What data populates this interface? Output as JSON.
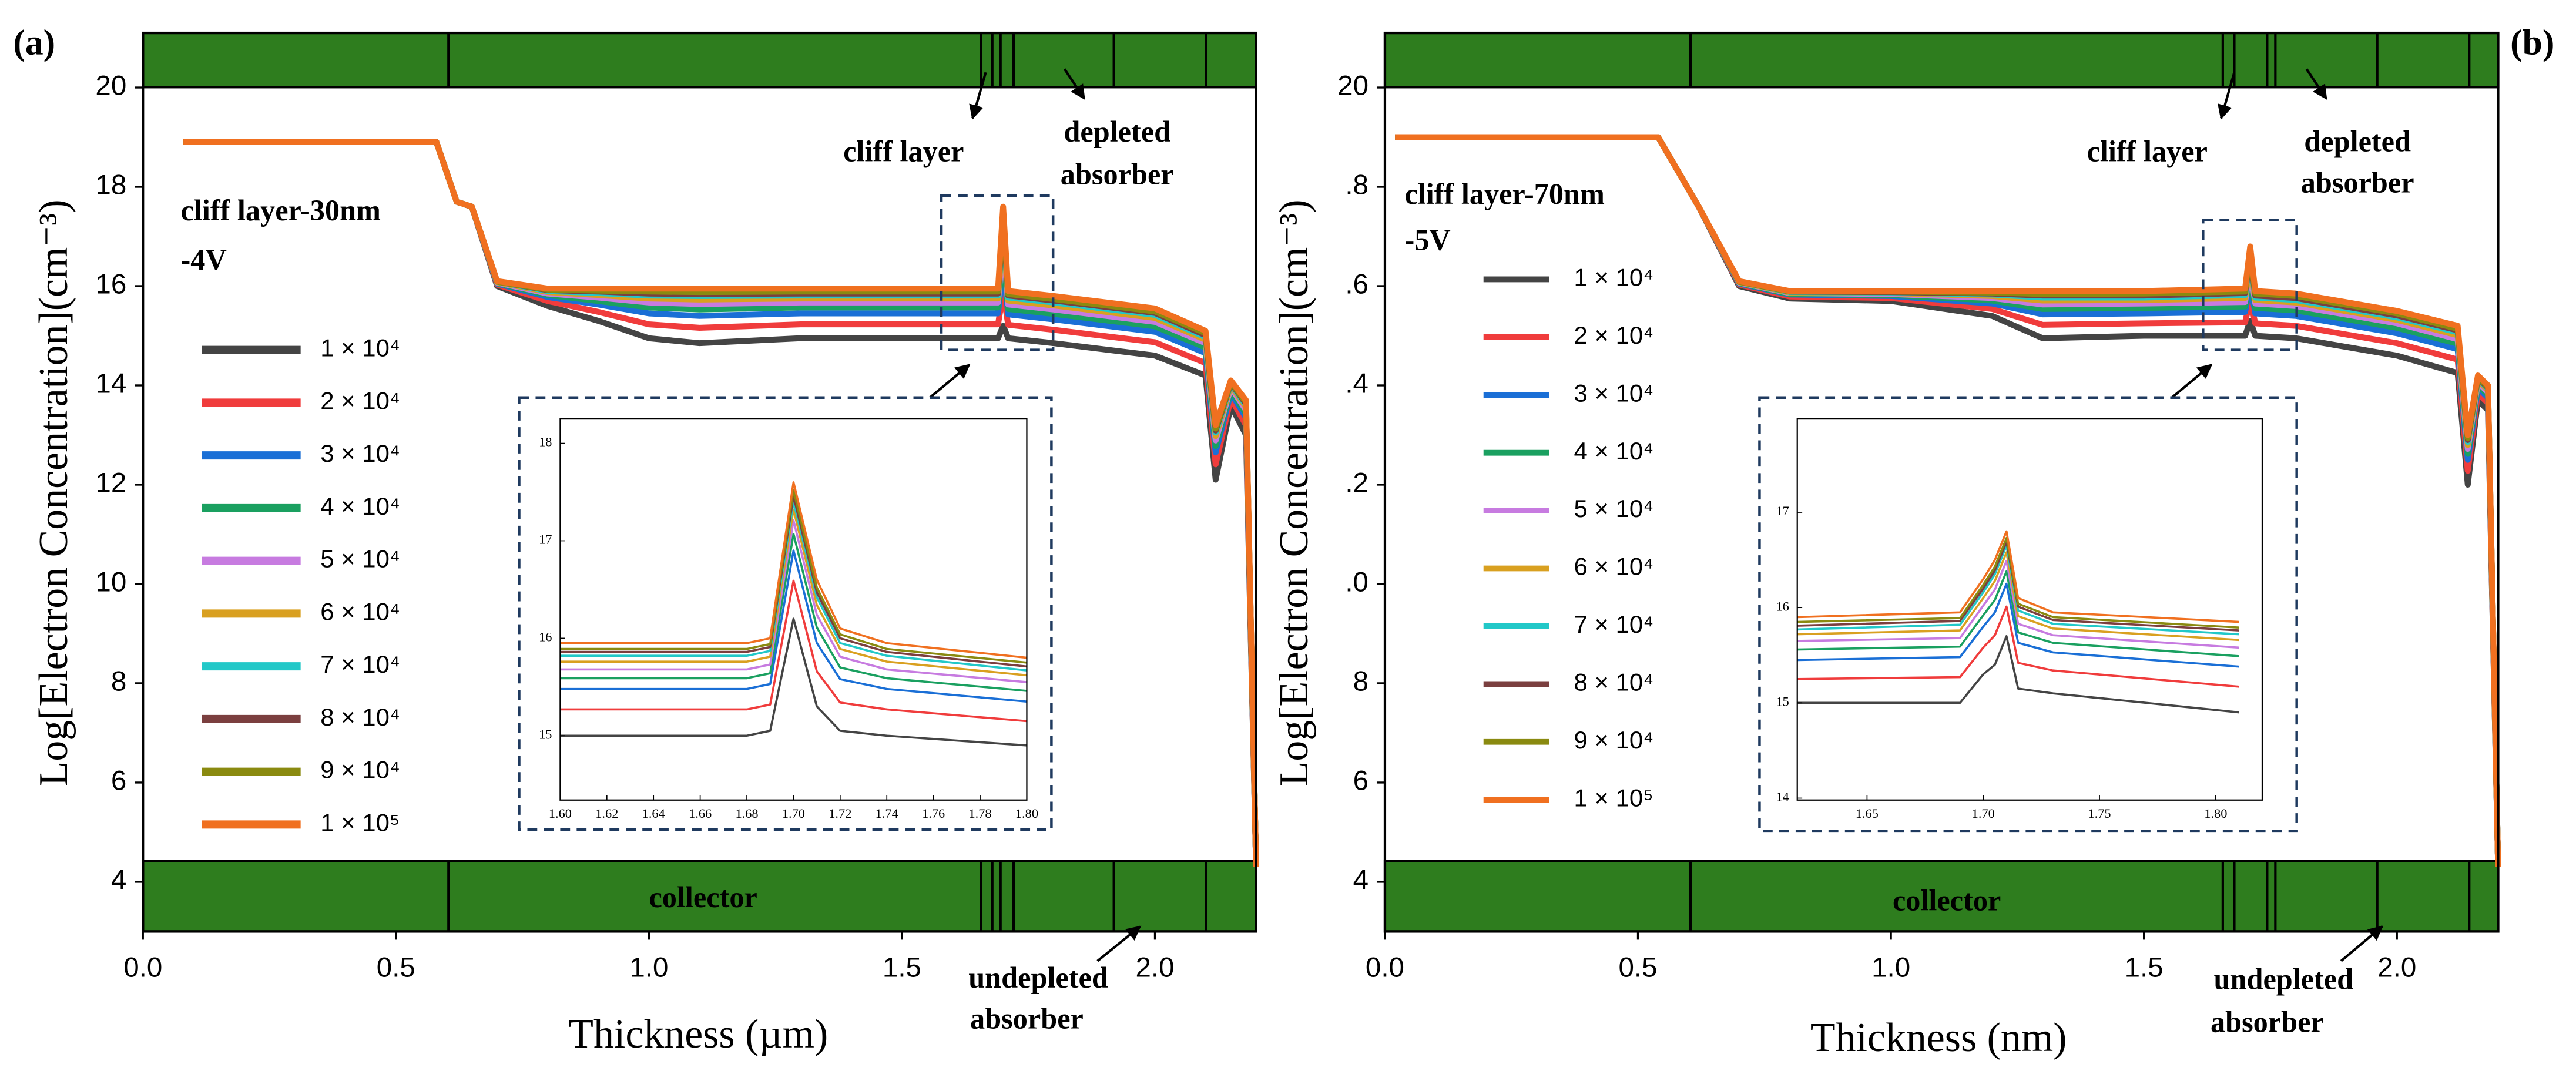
{
  "chart_data": [
    {
      "type": "line",
      "panel_label": "(a)",
      "x_label": "Thickness (µm)",
      "y_label": "Log[Electron Concentration](cm⁻³)",
      "annotations": [
        "cliff layer-30nm",
        "-4V",
        "cliff layer",
        "depleted",
        "absorber",
        "collector",
        "undepleted",
        "absorber"
      ],
      "xlim": [
        0,
        2.2
      ],
      "ylim": [
        3,
        21.1
      ],
      "xticks": [
        {
          "value": 0,
          "label": "0.0"
        },
        0.5,
        {
          "value": 1,
          "label": "1.0"
        },
        1.5,
        {
          "value": 2,
          "label": "2.0"
        }
      ],
      "yticks": [
        4,
        6,
        8,
        10,
        12,
        14,
        16,
        18,
        20
      ],
      "x": [
        0.08,
        0.58,
        0.62,
        0.65,
        0.7,
        0.8,
        0.9,
        1.0,
        1.1,
        1.3,
        1.69,
        1.7,
        1.71,
        1.8,
        2.0,
        2.1,
        2.12,
        2.15,
        2.18,
        2.2
      ],
      "series": [
        {
          "name": "1 × 10⁴",
          "color": "#444444",
          "values": [
            18.9,
            18.9,
            17.7,
            17.6,
            16.0,
            15.6,
            15.3,
            14.95,
            14.85,
            14.95,
            14.95,
            15.2,
            14.95,
            14.85,
            14.6,
            14.2,
            12.1,
            13.6,
            13.0,
            4.3
          ]
        },
        {
          "name": "2 × 10⁴",
          "color": "#f03c3c",
          "values": [
            18.9,
            18.9,
            17.7,
            17.6,
            16.03,
            15.7,
            15.48,
            15.23,
            15.16,
            15.23,
            15.23,
            15.87,
            15.22,
            15.12,
            14.87,
            14.45,
            12.41,
            13.74,
            13.2,
            4.3
          ]
        },
        {
          "name": "3 × 10⁴",
          "color": "#1a6fd6",
          "values": [
            18.9,
            18.9,
            17.7,
            17.6,
            16.05,
            15.78,
            15.63,
            15.45,
            15.4,
            15.45,
            15.45,
            16.4,
            15.43,
            15.33,
            15.08,
            14.65,
            12.65,
            13.85,
            13.35,
            4.3
          ]
        },
        {
          "name": "4 × 10⁴",
          "color": "#1aa060",
          "values": [
            18.9,
            18.9,
            17.7,
            17.6,
            16.06,
            15.82,
            15.7,
            15.57,
            15.53,
            15.57,
            15.57,
            16.69,
            15.54,
            15.44,
            15.19,
            14.76,
            12.78,
            13.91,
            13.43,
            4.3
          ]
        },
        {
          "name": "5 × 10⁴",
          "color": "#c77be0",
          "values": [
            18.9,
            18.9,
            17.7,
            17.6,
            16.07,
            15.85,
            15.77,
            15.67,
            15.64,
            15.67,
            15.67,
            16.93,
            15.63,
            15.53,
            15.28,
            14.85,
            12.89,
            13.96,
            13.5,
            4.3
          ]
        },
        {
          "name": "6 × 10⁴",
          "color": "#d9a020",
          "values": [
            18.9,
            18.9,
            17.7,
            17.6,
            16.08,
            15.88,
            15.82,
            15.75,
            15.73,
            15.75,
            15.75,
            17.12,
            15.71,
            15.61,
            15.36,
            14.92,
            12.98,
            14.0,
            13.56,
            4.3
          ]
        },
        {
          "name": "7 × 10⁴",
          "color": "#22c8c8",
          "values": [
            18.9,
            18.9,
            17.7,
            17.6,
            16.09,
            15.9,
            15.86,
            15.81,
            15.8,
            15.81,
            15.81,
            17.26,
            15.77,
            15.67,
            15.42,
            14.97,
            13.05,
            14.03,
            13.6,
            4.3
          ]
        },
        {
          "name": "8 × 10⁴",
          "color": "#7b3f3f",
          "values": [
            18.9,
            18.9,
            17.7,
            17.6,
            16.09,
            15.92,
            15.89,
            15.85,
            15.84,
            15.85,
            15.85,
            17.36,
            15.81,
            15.71,
            15.46,
            15.01,
            13.09,
            14.05,
            13.63,
            4.3
          ]
        },
        {
          "name": "9 × 10⁴",
          "color": "#8a8a10",
          "values": [
            18.9,
            18.9,
            17.7,
            17.6,
            16.09,
            15.93,
            15.91,
            15.89,
            15.88,
            15.89,
            15.89,
            17.46,
            15.84,
            15.74,
            15.49,
            15.05,
            13.13,
            14.07,
            13.66,
            4.3
          ]
        },
        {
          "name": "1 × 10⁵",
          "color": "#f07020",
          "values": [
            18.9,
            18.9,
            17.7,
            17.6,
            16.1,
            15.95,
            15.95,
            15.95,
            15.95,
            15.95,
            15.95,
            17.6,
            15.9,
            15.8,
            15.55,
            15.1,
            13.2,
            14.1,
            13.7,
            4.3
          ]
        }
      ]
    },
    {
      "type": "line",
      "xlim": [
        1.6,
        1.8
      ],
      "ylim": [
        14.34,
        18.25
      ],
      "xticks": [
        {
          "value": 1.6,
          "label": "1.60"
        },
        1.62,
        1.64,
        1.66,
        1.68,
        {
          "value": 1.7,
          "label": "1.70"
        },
        1.72,
        1.74,
        1.76,
        1.78,
        {
          "value": 1.8,
          "label": "1.80"
        }
      ],
      "yticks": [
        15,
        16,
        17,
        18
      ],
      "x": [
        1.6,
        1.68,
        1.69,
        1.7,
        1.71,
        1.72,
        1.74,
        1.8
      ],
      "series": [
        {
          "color": "#444444",
          "values": [
            15.0,
            15.0,
            15.05,
            16.2,
            15.3,
            15.05,
            15.0,
            14.9
          ]
        },
        {
          "color": "#f03c3c",
          "values": [
            15.27,
            15.27,
            15.32,
            16.59,
            15.66,
            15.34,
            15.27,
            15.15
          ]
        },
        {
          "color": "#1a6fd6",
          "values": [
            15.48,
            15.48,
            15.53,
            16.9,
            15.95,
            15.58,
            15.48,
            15.35
          ]
        },
        {
          "color": "#1aa060",
          "values": [
            15.59,
            15.59,
            15.64,
            17.07,
            16.11,
            15.7,
            15.59,
            15.46
          ]
        },
        {
          "color": "#c77be0",
          "values": [
            15.68,
            15.68,
            15.73,
            17.21,
            16.24,
            15.81,
            15.68,
            15.55
          ]
        },
        {
          "color": "#d9a020",
          "values": [
            15.76,
            15.76,
            15.81,
            17.32,
            16.34,
            15.89,
            15.76,
            15.62
          ]
        },
        {
          "color": "#22c8c8",
          "values": [
            15.82,
            15.82,
            15.87,
            17.4,
            16.42,
            15.95,
            15.82,
            15.67
          ]
        },
        {
          "color": "#7b3f3f",
          "values": [
            15.86,
            15.86,
            15.91,
            17.46,
            16.47,
            16.0,
            15.86,
            15.71
          ]
        },
        {
          "color": "#8a8a10",
          "values": [
            15.89,
            15.89,
            15.94,
            17.52,
            16.52,
            16.04,
            15.89,
            15.75
          ]
        },
        {
          "color": "#f07020",
          "values": [
            15.95,
            15.95,
            16.0,
            17.6,
            16.6,
            16.1,
            15.95,
            15.8
          ]
        }
      ]
    },
    {
      "type": "line",
      "panel_label": "(b)",
      "x_label": "Thickness (nm)",
      "y_label": "Log[Electron Concentration](cm⁻³)",
      "annotations": [
        "cliff layer-70nm",
        "-5V",
        "cliff layer",
        "depleted",
        "absorber",
        "collector",
        "undepleted",
        "absorber"
      ],
      "xlim": [
        0,
        2.2
      ],
      "ylim": [
        3,
        21.1
      ],
      "xticks": [
        {
          "value": 0,
          "label": "0.0"
        },
        0.5,
        {
          "value": 1,
          "label": "1.0"
        },
        1.5,
        {
          "value": 2,
          "label": "2.0"
        }
      ],
      "yticks": [
        4,
        6,
        8,
        {
          "value": 10,
          "label": ".0"
        },
        {
          "value": 12,
          "label": ".2"
        },
        {
          "value": 14,
          "label": ".4"
        },
        {
          "value": 16,
          "label": ".6"
        },
        {
          "value": 18,
          "label": ".8"
        },
        20
      ],
      "x": [
        0.02,
        0.54,
        0.58,
        0.62,
        0.7,
        0.8,
        1.0,
        1.2,
        1.3,
        1.5,
        1.7,
        1.71,
        1.72,
        1.8,
        2.0,
        2.12,
        2.14,
        2.16,
        2.18,
        2.2
      ],
      "series": [
        {
          "name": "1 × 10⁴",
          "color": "#444444",
          "values": [
            19.0,
            19.0,
            18.3,
            17.6,
            16.0,
            15.75,
            15.7,
            15.4,
            14.95,
            15.0,
            15.0,
            15.3,
            15.0,
            14.95,
            14.6,
            14.25,
            12.0,
            13.7,
            13.5,
            4.3
          ]
        },
        {
          "name": "2 × 10⁴",
          "color": "#f03c3c",
          "values": [
            19.0,
            19.0,
            18.3,
            17.6,
            16.03,
            15.79,
            15.76,
            15.54,
            15.22,
            15.25,
            15.27,
            15.72,
            15.25,
            15.2,
            14.85,
            14.52,
            12.28,
            13.84,
            13.64,
            4.3
          ]
        },
        {
          "name": "3 × 10⁴",
          "color": "#1a6fd6",
          "values": [
            19.0,
            19.0,
            18.3,
            17.6,
            16.05,
            15.83,
            15.8,
            15.65,
            15.43,
            15.45,
            15.48,
            16.05,
            15.45,
            15.4,
            15.05,
            14.73,
            12.5,
            13.95,
            13.75,
            4.3
          ]
        },
        {
          "name": "4 × 10⁴",
          "color": "#1aa060",
          "values": [
            19.0,
            19.0,
            18.3,
            17.6,
            16.06,
            15.84,
            15.82,
            15.71,
            15.54,
            15.56,
            15.59,
            16.23,
            15.56,
            15.51,
            15.16,
            14.84,
            12.62,
            14.01,
            13.81,
            4.3
          ]
        },
        {
          "name": "5 × 10⁴",
          "color": "#c77be0",
          "values": [
            19.0,
            19.0,
            18.3,
            17.6,
            16.07,
            15.86,
            15.84,
            15.76,
            15.63,
            15.65,
            15.68,
            16.38,
            15.65,
            15.6,
            15.25,
            14.93,
            12.72,
            14.06,
            13.86,
            4.3
          ]
        },
        {
          "name": "6 × 10⁴",
          "color": "#d9a020",
          "values": [
            19.0,
            19.0,
            18.3,
            17.6,
            16.08,
            15.87,
            15.86,
            15.8,
            15.71,
            15.72,
            15.76,
            16.5,
            15.72,
            15.67,
            15.32,
            15.01,
            12.8,
            14.1,
            13.9,
            4.3
          ]
        },
        {
          "name": "7 × 10⁴",
          "color": "#22c8c8",
          "values": [
            19.0,
            19.0,
            18.3,
            17.6,
            16.09,
            15.88,
            15.87,
            15.83,
            15.77,
            15.77,
            15.82,
            16.59,
            15.77,
            15.72,
            15.37,
            15.07,
            12.86,
            14.13,
            13.93,
            4.3
          ]
        },
        {
          "name": "8 × 10⁴",
          "color": "#7b3f3f",
          "values": [
            19.0,
            19.0,
            18.3,
            17.6,
            16.09,
            15.89,
            15.88,
            15.85,
            15.81,
            15.81,
            15.86,
            16.65,
            15.81,
            15.76,
            15.41,
            15.11,
            12.9,
            14.15,
            13.95,
            4.3
          ]
        },
        {
          "name": "9 × 10⁴",
          "color": "#8a8a10",
          "values": [
            19.0,
            19.0,
            18.3,
            17.6,
            16.09,
            15.89,
            15.89,
            15.87,
            15.84,
            15.85,
            15.89,
            16.71,
            15.85,
            15.8,
            15.45,
            15.14,
            12.94,
            14.17,
            13.97,
            4.3
          ]
        },
        {
          "name": "1 × 10⁵",
          "color": "#f07020",
          "values": [
            19.0,
            19.0,
            18.3,
            17.6,
            16.1,
            15.9,
            15.9,
            15.9,
            15.9,
            15.9,
            15.95,
            16.8,
            15.9,
            15.85,
            15.5,
            15.2,
            13.0,
            14.2,
            14.0,
            4.3
          ]
        }
      ]
    },
    {
      "type": "line",
      "xlim": [
        1.62,
        1.82
      ],
      "ylim": [
        13.98,
        17.98
      ],
      "xticks": [
        1.65,
        {
          "value": 1.7,
          "label": "1.70"
        },
        1.75,
        {
          "value": 1.8,
          "label": "1.80"
        }
      ],
      "yticks": [
        14,
        15,
        16,
        17
      ],
      "x": [
        1.62,
        1.69,
        1.7,
        1.705,
        1.71,
        1.715,
        1.73,
        1.81
      ],
      "series": [
        {
          "color": "#444444",
          "values": [
            15.0,
            15.0,
            15.3,
            15.4,
            15.7,
            15.15,
            15.1,
            14.9
          ]
        },
        {
          "color": "#f03c3c",
          "values": [
            15.25,
            15.27,
            15.58,
            15.71,
            16.01,
            15.42,
            15.34,
            15.17
          ]
        },
        {
          "color": "#1a6fd6",
          "values": [
            15.45,
            15.48,
            15.8,
            15.95,
            16.25,
            15.63,
            15.53,
            15.38
          ]
        },
        {
          "color": "#1aa060",
          "values": [
            15.56,
            15.59,
            15.92,
            16.08,
            16.38,
            15.74,
            15.63,
            15.49
          ]
        },
        {
          "color": "#c77be0",
          "values": [
            15.65,
            15.68,
            16.02,
            16.19,
            16.49,
            15.83,
            15.71,
            15.58
          ]
        },
        {
          "color": "#d9a020",
          "values": [
            15.72,
            15.76,
            16.1,
            16.28,
            16.58,
            15.91,
            15.78,
            15.66
          ]
        },
        {
          "color": "#22c8c8",
          "values": [
            15.77,
            15.82,
            16.16,
            16.35,
            16.65,
            15.97,
            15.83,
            15.72
          ]
        },
        {
          "color": "#7b3f3f",
          "values": [
            15.81,
            15.86,
            16.2,
            16.39,
            16.69,
            16.01,
            15.87,
            15.76
          ]
        },
        {
          "color": "#8a8a10",
          "values": [
            15.85,
            15.89,
            16.24,
            16.43,
            16.73,
            16.04,
            15.9,
            15.79
          ]
        },
        {
          "color": "#f07020",
          "values": [
            15.9,
            15.95,
            16.3,
            16.5,
            16.8,
            16.1,
            15.95,
            15.85
          ]
        }
      ]
    }
  ]
}
